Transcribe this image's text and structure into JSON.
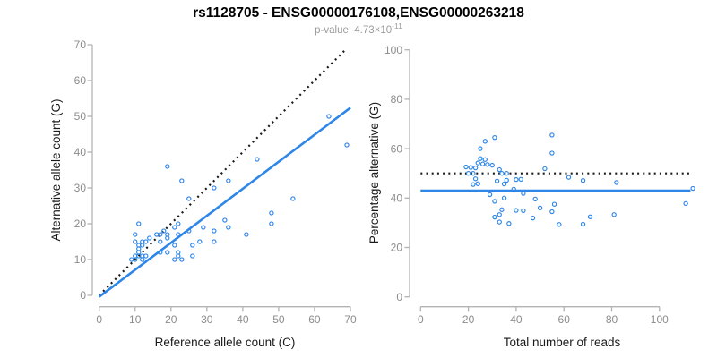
{
  "title": "rs1128705 - ENSG00000176108,ENSG00000263218",
  "subtitle": {
    "main": "p-value: 4.73×10",
    "exponent": "-11"
  },
  "colors": {
    "accent_blue": "#2E86E8",
    "dotted_black": "#1A1A1A",
    "axis_gray": "#B3B3B3",
    "tick_label_gray": "#8C8C8C",
    "subtitle_gray": "#9B9B9B"
  },
  "chart_data": [
    {
      "type": "scatter",
      "panel": "left",
      "xlabel": "Reference allele count (C)",
      "ylabel": "Alternative allele count (G)",
      "xlim": [
        0,
        70
      ],
      "ylim": [
        0,
        70
      ],
      "xticks": [
        0,
        10,
        20,
        30,
        40,
        50,
        60,
        70
      ],
      "yticks": [
        0,
        10,
        20,
        30,
        40,
        50,
        60,
        70
      ],
      "grid": false,
      "legend": "none",
      "marker": "open-circle",
      "points": [
        [
          19,
          36
        ],
        [
          23,
          32
        ],
        [
          10,
          17
        ],
        [
          11,
          20
        ],
        [
          10,
          15
        ],
        [
          11,
          13
        ],
        [
          11,
          14
        ],
        [
          12,
          14
        ],
        [
          12,
          15
        ],
        [
          13,
          15
        ],
        [
          14,
          16
        ],
        [
          10,
          11
        ],
        [
          11,
          12
        ],
        [
          9,
          10
        ],
        [
          10,
          10
        ],
        [
          16,
          17
        ],
        [
          17,
          17
        ],
        [
          18,
          18
        ],
        [
          11,
          11
        ],
        [
          12,
          11
        ],
        [
          12,
          10
        ],
        [
          13,
          11
        ],
        [
          17,
          15
        ],
        [
          19,
          16
        ],
        [
          19,
          17
        ],
        [
          21,
          19
        ],
        [
          22,
          20
        ],
        [
          25,
          27
        ],
        [
          32,
          30
        ],
        [
          36,
          32
        ],
        [
          44,
          38
        ],
        [
          64,
          50
        ],
        [
          17,
          12
        ],
        [
          21,
          14
        ],
        [
          19,
          12
        ],
        [
          25,
          18
        ],
        [
          29,
          19
        ],
        [
          22,
          17
        ],
        [
          22,
          12
        ],
        [
          22,
          11
        ],
        [
          21,
          10
        ],
        [
          23,
          10
        ],
        [
          26,
          11
        ],
        [
          26,
          14
        ],
        [
          28,
          15
        ],
        [
          32,
          15
        ],
        [
          32,
          18
        ],
        [
          36,
          19
        ],
        [
          35,
          21
        ],
        [
          41,
          17
        ],
        [
          48,
          20
        ],
        [
          48,
          23
        ],
        [
          54,
          27
        ],
        [
          69,
          42
        ]
      ],
      "lines": [
        {
          "name": "identity-line",
          "style": "dotted",
          "color": "#1A1A1A",
          "from": [
            0,
            0
          ],
          "to": [
            69,
            69
          ]
        },
        {
          "name": "fit-line",
          "style": "solid",
          "color": "#2E86E8",
          "from": [
            0,
            -0.4
          ],
          "to": [
            70,
            52.4
          ]
        }
      ]
    },
    {
      "type": "scatter",
      "panel": "right",
      "xlabel": "Total number of reads",
      "ylabel": "Percentage alternative (G)",
      "xlim": [
        0,
        117
      ],
      "ylim": [
        0,
        100
      ],
      "xticks": [
        0,
        20,
        40,
        60,
        80,
        100
      ],
      "yticks": [
        0,
        20,
        40,
        60,
        80,
        100
      ],
      "grid": false,
      "legend": "none",
      "marker": "open-circle",
      "points": [
        [
          55,
          65.5
        ],
        [
          55,
          58.2
        ],
        [
          27,
          63
        ],
        [
          31,
          64.5
        ],
        [
          25,
          60
        ],
        [
          24,
          54.2
        ],
        [
          25,
          56
        ],
        [
          26,
          53.8
        ],
        [
          27,
          55.6
        ],
        [
          28,
          53.6
        ],
        [
          30,
          53.3
        ],
        [
          21,
          52.4
        ],
        [
          23,
          52.2
        ],
        [
          19,
          52.6
        ],
        [
          20,
          50
        ],
        [
          33,
          51.5
        ],
        [
          34,
          50
        ],
        [
          36,
          50
        ],
        [
          22,
          50
        ],
        [
          23,
          47.8
        ],
        [
          22,
          45.5
        ],
        [
          24,
          45.8
        ],
        [
          32,
          46.9
        ],
        [
          35,
          45.7
        ],
        [
          36,
          47.2
        ],
        [
          40,
          47.5
        ],
        [
          42,
          47.6
        ],
        [
          52,
          51.9
        ],
        [
          62,
          48.4
        ],
        [
          68,
          47.1
        ],
        [
          82,
          46.3
        ],
        [
          114,
          43.9
        ],
        [
          29,
          41.4
        ],
        [
          35,
          40
        ],
        [
          31,
          38.7
        ],
        [
          43,
          41.9
        ],
        [
          48,
          39.6
        ],
        [
          39,
          43.6
        ],
        [
          34,
          35.3
        ],
        [
          33,
          33.3
        ],
        [
          31,
          32.3
        ],
        [
          33,
          30.3
        ],
        [
          37,
          29.7
        ],
        [
          40,
          35
        ],
        [
          43,
          34.9
        ],
        [
          47,
          31.9
        ],
        [
          50,
          36
        ],
        [
          55,
          34.5
        ],
        [
          56,
          37.5
        ],
        [
          58,
          29.3
        ],
        [
          68,
          29.4
        ],
        [
          71,
          32.4
        ],
        [
          81,
          33.3
        ],
        [
          111,
          37.8
        ]
      ],
      "lines": [
        {
          "name": "expected-50pct-line",
          "style": "dotted",
          "color": "#1A1A1A",
          "from": [
            0,
            50
          ],
          "to": [
            113,
            50
          ]
        },
        {
          "name": "fit-line",
          "style": "solid",
          "color": "#2E86E8",
          "from": [
            0,
            43
          ],
          "to": [
            113,
            43
          ]
        }
      ]
    }
  ]
}
